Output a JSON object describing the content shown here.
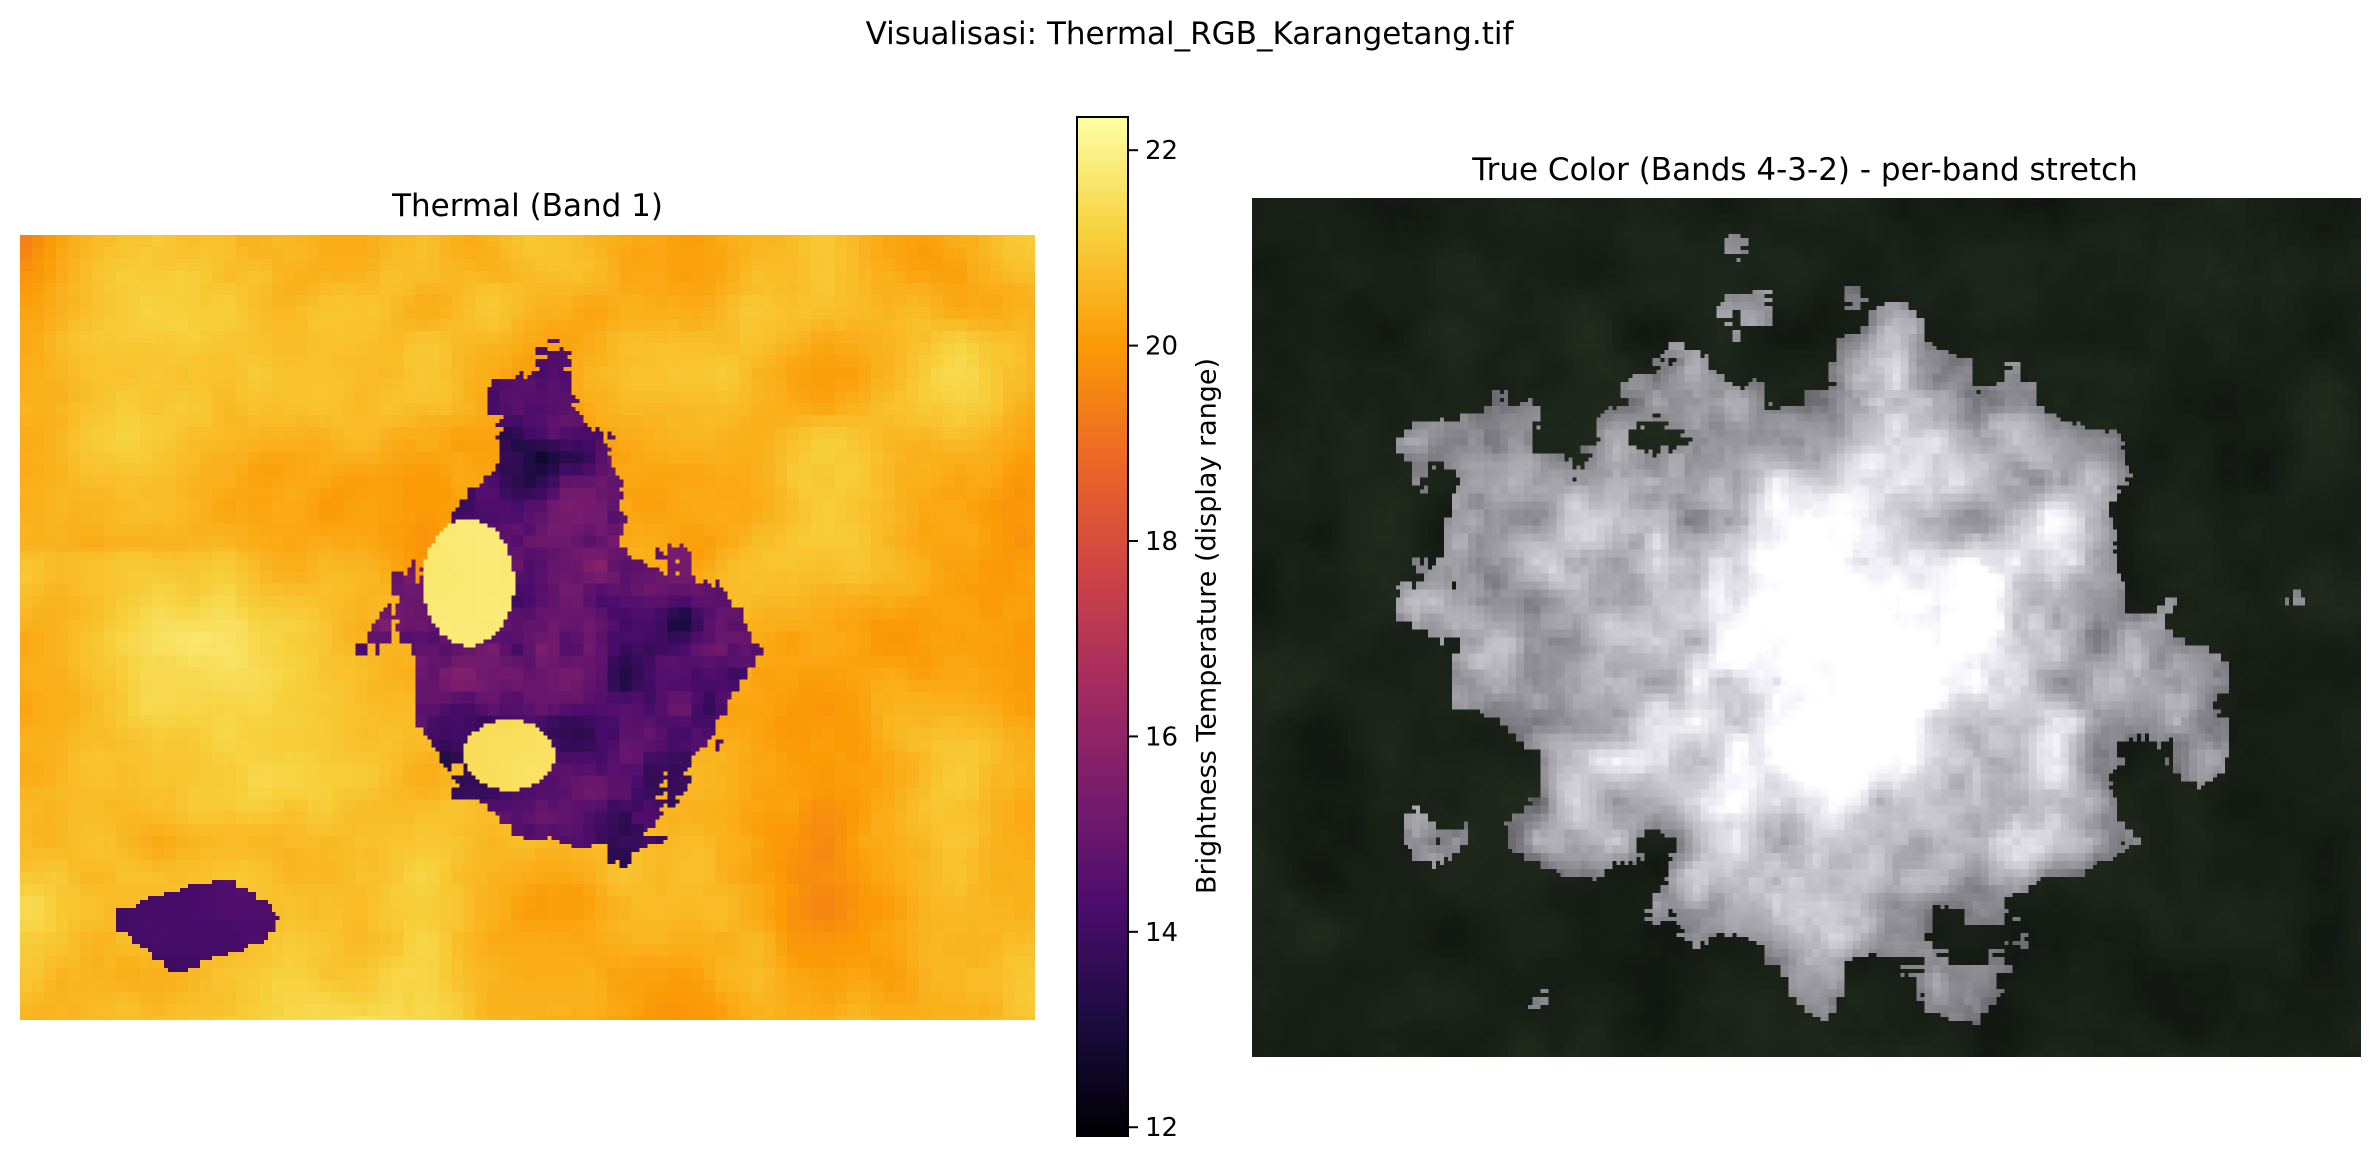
{
  "figure": {
    "suptitle": "Visualisasi: Thermal_RGB_Karangetang.tif"
  },
  "chart_data": [
    {
      "type": "heatmap",
      "title": "Thermal (Band 1)",
      "colormap": "inferno",
      "axis": "off",
      "colorbar": {
        "label": "Brightness Temperature (display range)",
        "vmin": 11.9,
        "vmax": 22.35,
        "ticks": [
          12,
          14,
          16,
          18,
          20,
          22
        ],
        "placement": "right"
      },
      "description_values": {
        "cold_core_min": 12,
        "warm_background_max": 22
      }
    },
    {
      "type": "image",
      "title": "True Color (Bands 4-3-2) - per-band stretch",
      "axis": "off",
      "colors": {
        "background": "#0d110d",
        "cloud": "#c8c8cc",
        "vegetation": "#1b2a1d"
      }
    }
  ],
  "colors": {
    "inferno_stops": [
      "#000004",
      "#1b0c41",
      "#4a0c6b",
      "#781c6d",
      "#a52c60",
      "#cf4446",
      "#ed6925",
      "#fb9b06",
      "#f7d13d",
      "#fcffa4"
    ]
  }
}
